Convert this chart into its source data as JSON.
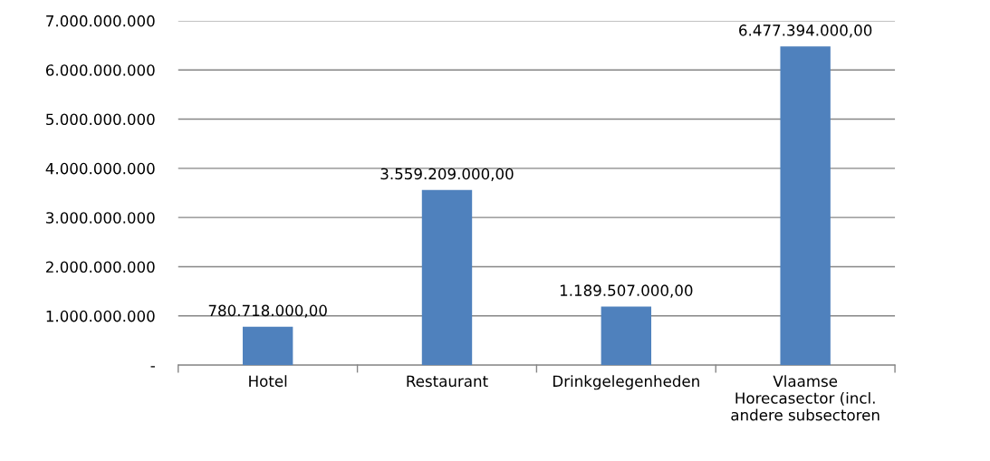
{
  "chart_data": {
    "type": "bar",
    "categories": [
      "Hotel",
      "Restaurant",
      "Drinkgelegenheden",
      "Vlaamse Horecasector (incl. andere subsectoren"
    ],
    "values": [
      780718000,
      3559209000,
      1189507000,
      6477394000
    ],
    "value_labels": [
      "780.718.000,00",
      "3.559.209.000,00",
      "1.189.507.000,00",
      "6.477.394.000,00"
    ],
    "color": "#4f81bd",
    "ylim": [
      0,
      7000000000
    ],
    "yticks": [
      {
        "value": 0,
        "label": "-"
      },
      {
        "value": 1000000000,
        "label": "1.000.000.000"
      },
      {
        "value": 2000000000,
        "label": "2.000.000.000"
      },
      {
        "value": 3000000000,
        "label": "3.000.000.000"
      },
      {
        "value": 4000000000,
        "label": "4.000.000.000"
      },
      {
        "value": 5000000000,
        "label": "5.000.000.000"
      },
      {
        "value": 6000000000,
        "label": "6.000.000.000"
      },
      {
        "value": 7000000000,
        "label": "7.000.000.000"
      }
    ],
    "grid": "y"
  }
}
